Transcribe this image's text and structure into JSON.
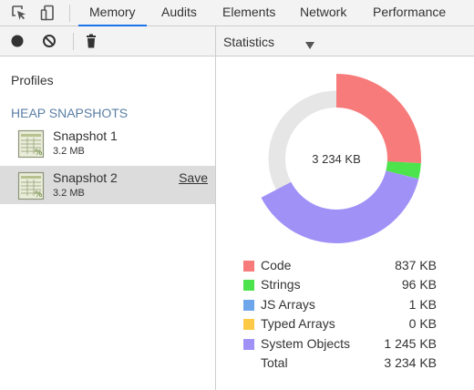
{
  "topbar": {
    "tabs": [
      {
        "label": "Memory",
        "active": true
      },
      {
        "label": "Audits"
      },
      {
        "label": "Elements"
      },
      {
        "label": "Network"
      },
      {
        "label": "Performance"
      }
    ],
    "icons": [
      "element-picker-icon",
      "device-toggle-icon"
    ]
  },
  "left_toolbar": {
    "icons": [
      "record-icon",
      "clear-icon",
      "trash-icon"
    ]
  },
  "left_panel": {
    "profiles_label": "Profiles",
    "section_label": "HEAP SNAPSHOTS",
    "snapshots": [
      {
        "name": "Snapshot 1",
        "size": "3.2 MB",
        "selected": false
      },
      {
        "name": "Snapshot 2",
        "size": "3.2 MB",
        "selected": true,
        "action": "Save"
      }
    ]
  },
  "right_toolbar": {
    "view_label": "Statistics"
  },
  "chart_data": {
    "type": "pie",
    "variant": "donut",
    "center_label": "3 234 KB",
    "unit": "KB",
    "slices": [
      {
        "name": "Code",
        "value": 837,
        "label": "837 KB",
        "color": "#f77b7b"
      },
      {
        "name": "Strings",
        "value": 96,
        "label": "96 KB",
        "color": "#4ce34c"
      },
      {
        "name": "JS Arrays",
        "value": 1,
        "label": "1 KB",
        "color": "#6ea6ec"
      },
      {
        "name": "Typed Arrays",
        "value": 0,
        "label": "0 KB",
        "color": "#fdca48"
      },
      {
        "name": "System Objects",
        "value": 1245,
        "label": "1 245 KB",
        "color": "#a091f7"
      }
    ],
    "total": {
      "name": "Total",
      "value": 3234,
      "label": "3 234 KB"
    }
  }
}
